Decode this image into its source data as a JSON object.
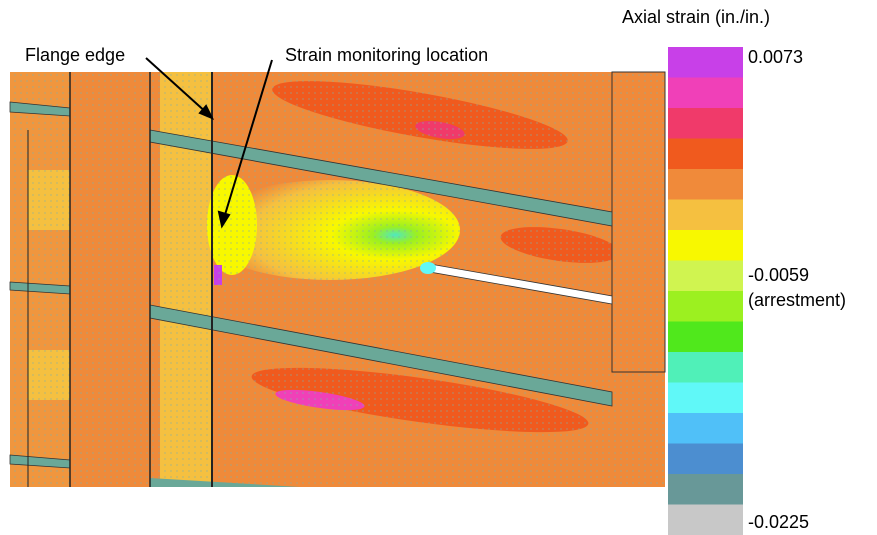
{
  "annotations": {
    "flange_edge": "Flange edge",
    "monitoring": "Strain monitoring location"
  },
  "colorbar": {
    "title": "Axial strain (in./in.)",
    "labels": [
      "0.0073",
      "-0.0059",
      "(arrestment)",
      "-0.0225"
    ],
    "colors": [
      "#c840e8",
      "#f040b8",
      "#f03a6a",
      "#f05a1e",
      "#f08a3a",
      "#f5c040",
      "#f8f800",
      "#d0f450",
      "#9cf020",
      "#50e81c",
      "#50f0b8",
      "#60f8f8",
      "#50c0f8",
      "#4c8ed0",
      "#689898",
      "#c8c8c8"
    ]
  }
}
